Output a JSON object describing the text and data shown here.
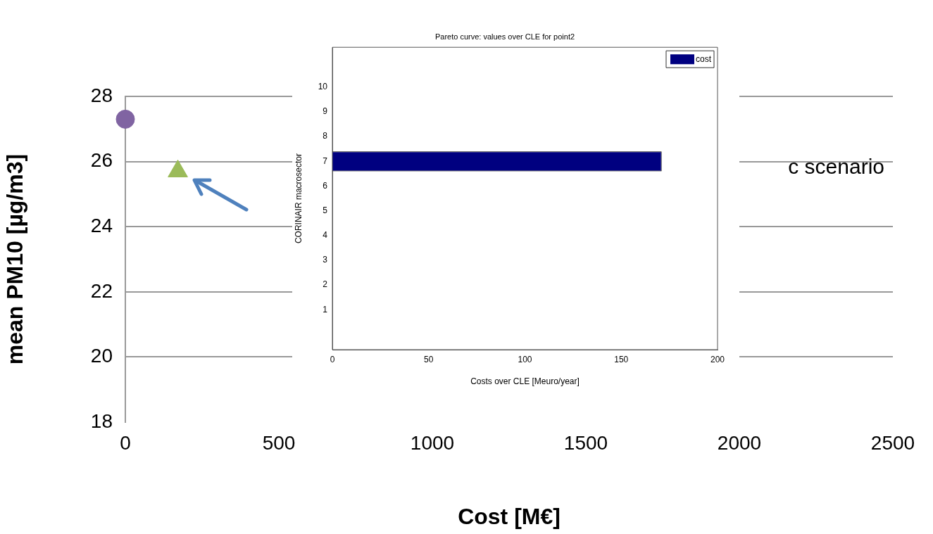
{
  "chart_data": [
    {
      "type": "scatter",
      "xlabel": "Cost [M€]",
      "ylabel": "mean PM10 [µg/m3]",
      "xlim": [
        0,
        2500
      ],
      "xticks": [
        0,
        500,
        1000,
        1500,
        2000,
        2500
      ],
      "ylim": [
        18,
        28
      ],
      "yticks": [
        18,
        20,
        22,
        24,
        26,
        28
      ],
      "grid": "y",
      "series": [
        {
          "color": "#8064a2",
          "marker": "circle",
          "x": [
            0
          ],
          "values": [
            27.3
          ]
        },
        {
          "color": "#9bbb59",
          "marker": "triangle",
          "x": [
            171
          ],
          "values": [
            25.7
          ]
        }
      ],
      "annotations": [
        "c scenario"
      ]
    },
    {
      "type": "bar",
      "orientation": "horizontal",
      "title": "Pareto curve: values over CLE for point2",
      "xlabel": "Costs over CLE [Meuro/year]",
      "ylabel": "CORINAIR macrosector",
      "categories": [
        "10",
        "9",
        "8",
        "7",
        "6",
        "5",
        "4",
        "3",
        "2",
        "1"
      ],
      "xlim": [
        0,
        200
      ],
      "xticks": [
        0,
        50,
        100,
        150,
        200
      ],
      "legend": "top right",
      "series": [
        {
          "name": "cost",
          "color": "#000080",
          "values": [
            null,
            null,
            null,
            171,
            null,
            null,
            null,
            null,
            null,
            null
          ]
        }
      ]
    }
  ]
}
